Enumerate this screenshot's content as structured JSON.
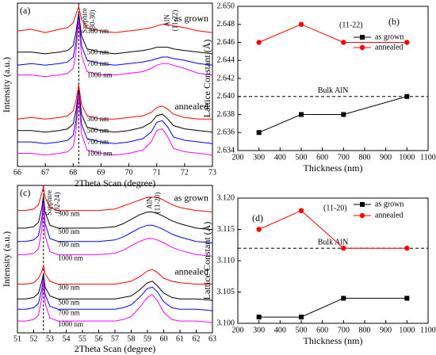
{
  "chart_data": [
    {
      "type": "spectra",
      "panel_label": "(a)",
      "xlabel": "2Theta Scan (degree)",
      "ylabel": "Intensity (a.u.)",
      "xlim": [
        66,
        73
      ],
      "xticks": [
        66,
        67,
        68,
        69,
        70,
        71,
        72,
        73
      ],
      "ylim": [
        0,
        100
      ],
      "marker_x": 68.2,
      "peak_labels": [
        [
          "Sapphire",
          "(30-30)"
        ],
        [
          "AlN",
          "(11-22)"
        ]
      ],
      "x": [
        66,
        66.5,
        67,
        67.5,
        67.8,
        68,
        68.1,
        68.2,
        68.3,
        68.5,
        69,
        69.5,
        70,
        70.5,
        70.8,
        71,
        71.2,
        71.4,
        71.6,
        72,
        72.5,
        73
      ],
      "groups": [
        {
          "label": "as grown",
          "series": [
            {
              "name": "300 nm",
              "color": "#ff0000",
              "values": [
                83,
                84,
                82,
                84,
                85,
                88,
                93,
                98,
                90,
                85,
                83,
                82,
                83,
                84,
                85,
                86,
                87,
                87,
                86,
                85,
                83,
                82
              ]
            },
            {
              "name": "500 nm",
              "color": "#000000",
              "values": [
                70,
                70,
                69,
                70,
                71,
                74,
                82,
                94,
                80,
                72,
                70,
                69,
                70,
                71,
                72,
                73,
                73,
                73,
                72,
                71,
                70,
                69
              ]
            },
            {
              "name": "700 nm",
              "color": "#0000ff",
              "values": [
                62,
                63,
                62,
                63,
                64,
                67,
                76,
                92,
                74,
                65,
                63,
                62,
                63,
                64,
                65,
                66,
                67,
                67,
                66,
                65,
                63,
                62
              ]
            },
            {
              "name": "1000 nm",
              "color": "#ff00ff",
              "values": [
                56,
                56,
                55,
                56,
                57,
                60,
                70,
                90,
                68,
                58,
                56,
                56,
                57,
                58,
                60,
                62,
                63,
                63,
                62,
                60,
                57,
                56
              ]
            }
          ]
        },
        {
          "label": "annealed",
          "series": [
            {
              "name": "300 nm",
              "color": "#ff0000",
              "values": [
                29,
                30,
                29,
                30,
                31,
                34,
                40,
                50,
                38,
                31,
                29,
                29,
                30,
                31,
                33,
                36,
                37,
                35,
                32,
                30,
                29,
                29
              ]
            },
            {
              "name": "500 nm",
              "color": "#000000",
              "values": [
                22,
                22,
                21,
                22,
                23,
                26,
                34,
                47,
                32,
                24,
                22,
                21,
                22,
                24,
                27,
                31,
                32,
                29,
                25,
                23,
                22,
                21
              ]
            },
            {
              "name": "700 nm",
              "color": "#0000ff",
              "values": [
                15,
                15,
                14,
                15,
                16,
                19,
                28,
                45,
                26,
                17,
                15,
                14,
                15,
                17,
                21,
                27,
                28,
                24,
                18,
                16,
                15,
                14
              ]
            },
            {
              "name": "1000 nm",
              "color": "#ff00ff",
              "values": [
                8,
                8,
                7,
                8,
                9,
                12,
                22,
                44,
                20,
                10,
                8,
                7,
                8,
                10,
                15,
                22,
                23,
                18,
                11,
                9,
                8,
                7
              ]
            }
          ]
        }
      ]
    },
    {
      "type": "line",
      "panel_label": "(b)",
      "annotation": "(11-22)",
      "xlabel": "Thickness (nm)",
      "ylabel": "Lattice Constant (Å)",
      "xlim": [
        200,
        1100
      ],
      "xticks": [
        200,
        300,
        400,
        500,
        600,
        700,
        800,
        900,
        1000,
        1100
      ],
      "ylim": [
        2.634,
        2.65
      ],
      "yticks": [
        2.634,
        2.636,
        2.638,
        {
          "value": 2.64,
          "label": "2.640"
        },
        2.642,
        2.644,
        2.646,
        2.648,
        {
          "value": 2.65,
          "label": "2.650"
        }
      ],
      "reference": {
        "value": 2.64,
        "label": "Bulk AlN"
      },
      "x": [
        300,
        500,
        700,
        1000
      ],
      "series": [
        {
          "name": "as grown",
          "color": "#000000",
          "marker": "square",
          "values": [
            2.636,
            2.638,
            2.638,
            2.64
          ]
        },
        {
          "name": "annealed",
          "color": "#ff0000",
          "marker": "circle",
          "values": [
            2.646,
            2.648,
            2.646,
            2.646
          ]
        }
      ]
    },
    {
      "type": "spectra",
      "panel_label": "(c)",
      "xlabel": "2Theta Scan (degree)",
      "ylabel": "Intensity (a.u.)",
      "xlim": [
        51,
        63
      ],
      "xticks": [
        51,
        52,
        53,
        54,
        55,
        56,
        57,
        58,
        59,
        60,
        61,
        62,
        63
      ],
      "ylim": [
        0,
        100
      ],
      "marker_x": 52.6,
      "peak_labels": [
        [
          "Sapphire",
          "(02-24)"
        ],
        [
          "AlN",
          "(11-20)"
        ]
      ],
      "x": [
        51,
        51.5,
        52,
        52.3,
        52.5,
        52.6,
        52.7,
        53,
        53.5,
        54,
        55,
        56,
        57,
        57.5,
        58,
        58.5,
        59,
        59.3,
        59.6,
        60,
        60.5,
        61,
        62,
        63
      ],
      "groups": [
        {
          "label": "as grown",
          "series": [
            {
              "name": "300 nm",
              "color": "#ff0000",
              "values": [
                83,
                83,
                84,
                87,
                95,
                99,
                92,
                85,
                83,
                83,
                83,
                83,
                84,
                86,
                88,
                90,
                92,
                92,
                92,
                90,
                87,
                85,
                83,
                82
              ]
            },
            {
              "name": "500 nm",
              "color": "#000000",
              "values": [
                71,
                71,
                72,
                75,
                85,
                93,
                82,
                73,
                71,
                71,
                71,
                71,
                72,
                74,
                77,
                80,
                82,
                82,
                81,
                79,
                76,
                74,
                71,
                70
              ]
            },
            {
              "name": "700 nm",
              "color": "#0000ff",
              "values": [
                62,
                62,
                63,
                66,
                78,
                90,
                74,
                64,
                62,
                62,
                62,
                62,
                63,
                65,
                68,
                71,
                73,
                73,
                72,
                70,
                67,
                65,
                62,
                61
              ]
            },
            {
              "name": "1000 nm",
              "color": "#ff00ff",
              "values": [
                53,
                53,
                54,
                57,
                70,
                88,
                66,
                55,
                53,
                53,
                53,
                53,
                54,
                56,
                59,
                62,
                64,
                64,
                63,
                61,
                58,
                56,
                53,
                52
              ]
            }
          ]
        },
        {
          "label": "annealed",
          "series": [
            {
              "name": "300 nm",
              "color": "#ff0000",
              "values": [
                33,
                33,
                34,
                37,
                42,
                46,
                40,
                35,
                33,
                33,
                33,
                33,
                33,
                34,
                35,
                38,
                42,
                43,
                41,
                37,
                35,
                34,
                33,
                33
              ]
            },
            {
              "name": "500 nm",
              "color": "#000000",
              "values": [
                23,
                23,
                24,
                27,
                35,
                40,
                31,
                25,
                23,
                23,
                23,
                23,
                23,
                24,
                25,
                29,
                34,
                35,
                32,
                27,
                24,
                23,
                23,
                22
              ]
            },
            {
              "name": "700 nm",
              "color": "#0000ff",
              "values": [
                16,
                16,
                17,
                20,
                30,
                38,
                26,
                18,
                16,
                16,
                16,
                16,
                16,
                17,
                19,
                24,
                30,
                31,
                28,
                21,
                17,
                16,
                16,
                15
              ]
            },
            {
              "name": "1000 nm",
              "color": "#ff00ff",
              "values": [
                8,
                8,
                9,
                12,
                24,
                36,
                20,
                10,
                8,
                8,
                8,
                8,
                8,
                9,
                11,
                17,
                24,
                26,
                22,
                14,
                9,
                8,
                8,
                7
              ]
            }
          ]
        }
      ]
    },
    {
      "type": "line",
      "panel_label": "(d)",
      "annotation": "(11-20)",
      "xlabel": "Thickness (nm)",
      "ylabel": "Lattice Constant (Å)",
      "xlim": [
        200,
        1100
      ],
      "xticks": [
        200,
        300,
        400,
        500,
        600,
        700,
        800,
        900,
        1000,
        1100
      ],
      "ylim": [
        3.1,
        3.12
      ],
      "yticks": [
        {
          "value": 3.1,
          "label": "3.100"
        },
        3.105,
        {
          "value": 3.11,
          "label": "3.110"
        },
        3.115,
        {
          "value": 3.12,
          "label": "3.120"
        }
      ],
      "reference": {
        "value": 3.112,
        "label": "Bulk AlN"
      },
      "x": [
        300,
        500,
        700,
        1000
      ],
      "series": [
        {
          "name": "as grown",
          "color": "#000000",
          "marker": "square",
          "values": [
            3.101,
            3.101,
            3.104,
            3.104
          ]
        },
        {
          "name": "annealed",
          "color": "#ff0000",
          "marker": "circle",
          "values": [
            3.115,
            3.118,
            3.112,
            3.112
          ]
        }
      ]
    }
  ]
}
